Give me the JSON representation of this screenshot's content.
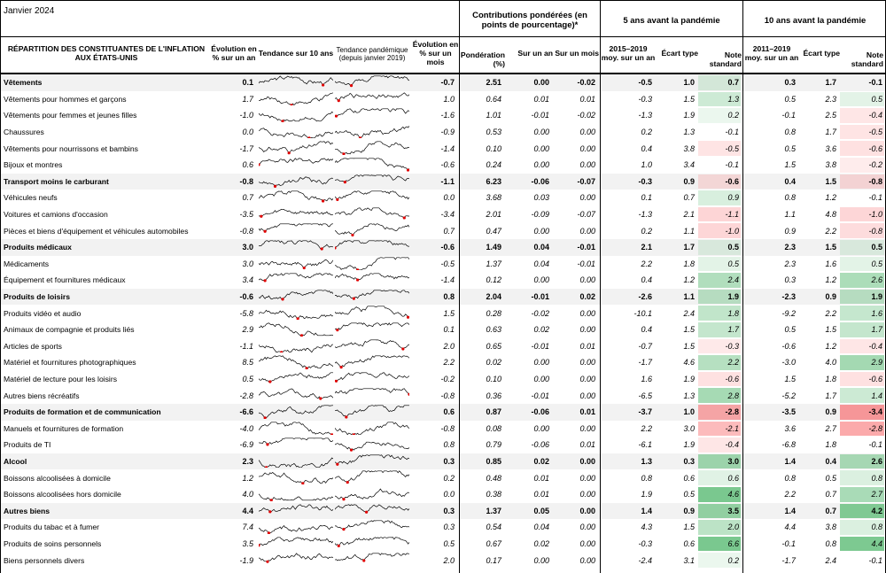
{
  "header": {
    "date": "Janvier 2024",
    "title_line1": "RÉPARTITION DES CONSTITUANTES DE L'INFLATION",
    "title_line2": "AUX ÉTATS-UNIS",
    "col_yoy_1": "Évolution en",
    "col_yoy_2": "% sur un an",
    "col_trend10": "Tendance sur 10 ans",
    "col_trendpan_1": "Tendance pandémique",
    "col_trendpan_2": "(depuis janvier 2019)",
    "col_mom_1": "Évolution en",
    "col_mom_2": "% sur un mois",
    "group_contrib_1": "Contributions pondérées (en",
    "group_contrib_2": "points de pourcentage)*",
    "col_weight_1": "Pondération",
    "col_weight_2": "(%)",
    "col_c_yoy": "Sur un an",
    "col_c_mom": "Sur un mois",
    "group_5y": "5 ans avant la pandémie",
    "group_10y": "10 ans avant la pandémie",
    "col_5y_avg_1": "2015–2019",
    "col_5y_avg_2": "moy. sur un an",
    "col_5y_sd": "Écart type",
    "col_5y_z_1": "Note",
    "col_5y_z_2": "standard",
    "col_10y_avg_1": "2011–2019",
    "col_10y_avg_2": "moy. sur un an",
    "col_10y_sd": "Écart type",
    "col_10y_z_1": "Note",
    "col_10y_z_2": "standard"
  },
  "rows": [
    {
      "name": "Vêtements",
      "cat": true,
      "yoy": "0.1",
      "mom": "-0.7",
      "w": "2.51",
      "cy": "0.00",
      "cm": "-0.02",
      "a5": "-0.5",
      "s5": "1.0",
      "z5": "0.7",
      "a10": "0.3",
      "s10": "1.7",
      "z10": "-0.1"
    },
    {
      "name": "Vêtements pour hommes et garçons",
      "cat": false,
      "yoy": "1.7",
      "mom": "1.0",
      "w": "0.64",
      "cy": "0.01",
      "cm": "0.01",
      "a5": "-0.3",
      "s5": "1.5",
      "z5": "1.3",
      "a10": "0.5",
      "s10": "2.3",
      "z10": "0.5"
    },
    {
      "name": "Vêtements pour femmes et jeunes filles",
      "cat": false,
      "yoy": "-1.0",
      "mom": "-1.6",
      "w": "1.01",
      "cy": "-0.01",
      "cm": "-0.02",
      "a5": "-1.3",
      "s5": "1.9",
      "z5": "0.2",
      "a10": "-0.1",
      "s10": "2.5",
      "z10": "-0.4"
    },
    {
      "name": "Chaussures",
      "cat": false,
      "yoy": "0.0",
      "mom": "-0.9",
      "w": "0.53",
      "cy": "0.00",
      "cm": "0.00",
      "a5": "0.2",
      "s5": "1.3",
      "z5": "-0.1",
      "a10": "0.8",
      "s10": "1.7",
      "z10": "-0.5"
    },
    {
      "name": "Vêtements pour nourrissons et bambins",
      "cat": false,
      "yoy": "-1.7",
      "mom": "-1.4",
      "w": "0.10",
      "cy": "0.00",
      "cm": "0.00",
      "a5": "0.4",
      "s5": "3.8",
      "z5": "-0.5",
      "a10": "0.5",
      "s10": "3.6",
      "z10": "-0.6"
    },
    {
      "name": "Bijoux et montres",
      "cat": false,
      "yoy": "0.6",
      "mom": "-0.6",
      "w": "0.24",
      "cy": "0.00",
      "cm": "0.00",
      "a5": "1.0",
      "s5": "3.4",
      "z5": "-0.1",
      "a10": "1.5",
      "s10": "3.8",
      "z10": "-0.2"
    },
    {
      "name": "Transport moins le carburant",
      "cat": true,
      "yoy": "-0.8",
      "mom": "-1.1",
      "w": "6.23",
      "cy": "-0.06",
      "cm": "-0.07",
      "a5": "-0.3",
      "s5": "0.9",
      "z5": "-0.6",
      "a10": "0.4",
      "s10": "1.5",
      "z10": "-0.8"
    },
    {
      "name": "Véhicules neufs",
      "cat": false,
      "yoy": "0.7",
      "mom": "0.0",
      "w": "3.68",
      "cy": "0.03",
      "cm": "0.00",
      "a5": "0.1",
      "s5": "0.7",
      "z5": "0.9",
      "a10": "0.8",
      "s10": "1.2",
      "z10": "-0.1"
    },
    {
      "name": "Voitures et camions d'occasion",
      "cat": false,
      "yoy": "-3.5",
      "mom": "-3.4",
      "w": "2.01",
      "cy": "-0.09",
      "cm": "-0.07",
      "a5": "-1.3",
      "s5": "2.1",
      "z5": "-1.1",
      "a10": "1.1",
      "s10": "4.8",
      "z10": "-1.0"
    },
    {
      "name": "Pièces et biens d'équipement et véhicules automobiles",
      "cat": false,
      "yoy": "-0.8",
      "mom": "0.7",
      "w": "0.47",
      "cy": "0.00",
      "cm": "0.00",
      "a5": "0.2",
      "s5": "1.1",
      "z5": "-1.0",
      "a10": "0.9",
      "s10": "2.2",
      "z10": "-0.8"
    },
    {
      "name": "Produits médicaux",
      "cat": true,
      "yoy": "3.0",
      "mom": "-0.6",
      "w": "1.49",
      "cy": "0.04",
      "cm": "-0.01",
      "a5": "2.1",
      "s5": "1.7",
      "z5": "0.5",
      "a10": "2.3",
      "s10": "1.5",
      "z10": "0.5"
    },
    {
      "name": "Médicaments",
      "cat": false,
      "yoy": "3.0",
      "mom": "-0.5",
      "w": "1.37",
      "cy": "0.04",
      "cm": "-0.01",
      "a5": "2.2",
      "s5": "1.8",
      "z5": "0.5",
      "a10": "2.3",
      "s10": "1.6",
      "z10": "0.5"
    },
    {
      "name": "Équipement et fournitures médicaux",
      "cat": false,
      "yoy": "3.4",
      "mom": "-1.4",
      "w": "0.12",
      "cy": "0.00",
      "cm": "0.00",
      "a5": "0.4",
      "s5": "1.2",
      "z5": "2.4",
      "a10": "0.3",
      "s10": "1.2",
      "z10": "2.6"
    },
    {
      "name": "Produits de loisirs",
      "cat": true,
      "yoy": "-0.6",
      "mom": "0.8",
      "w": "2.04",
      "cy": "-0.01",
      "cm": "0.02",
      "a5": "-2.6",
      "s5": "1.1",
      "z5": "1.9",
      "a10": "-2.3",
      "s10": "0.9",
      "z10": "1.9"
    },
    {
      "name": "Produits vidéo et audio",
      "cat": false,
      "yoy": "-5.8",
      "mom": "1.5",
      "w": "0.28",
      "cy": "-0.02",
      "cm": "0.00",
      "a5": "-10.1",
      "s5": "2.4",
      "z5": "1.8",
      "a10": "-9.2",
      "s10": "2.2",
      "z10": "1.6"
    },
    {
      "name": "Animaux de compagnie et produits liés",
      "cat": false,
      "yoy": "2.9",
      "mom": "0.1",
      "w": "0.63",
      "cy": "0.02",
      "cm": "0.00",
      "a5": "0.4",
      "s5": "1.5",
      "z5": "1.7",
      "a10": "0.5",
      "s10": "1.5",
      "z10": "1.7"
    },
    {
      "name": "Articles de sports",
      "cat": false,
      "yoy": "-1.1",
      "mom": "2.0",
      "w": "0.65",
      "cy": "-0.01",
      "cm": "0.01",
      "a5": "-0.7",
      "s5": "1.5",
      "z5": "-0.3",
      "a10": "-0.6",
      "s10": "1.2",
      "z10": "-0.4"
    },
    {
      "name": "Matériel et fournitures photographiques",
      "cat": false,
      "yoy": "8.5",
      "mom": "2.2",
      "w": "0.02",
      "cy": "0.00",
      "cm": "0.00",
      "a5": "-1.7",
      "s5": "4.6",
      "z5": "2.2",
      "a10": "-3.0",
      "s10": "4.0",
      "z10": "2.9"
    },
    {
      "name": "Matériel de lecture pour les loisirs",
      "cat": false,
      "yoy": "0.5",
      "mom": "-0.2",
      "w": "0.10",
      "cy": "0.00",
      "cm": "0.00",
      "a5": "1.6",
      "s5": "1.9",
      "z5": "-0.6",
      "a10": "1.5",
      "s10": "1.8",
      "z10": "-0.6"
    },
    {
      "name": "Autres biens récréatifs",
      "cat": false,
      "yoy": "-2.8",
      "mom": "-0.8",
      "w": "0.36",
      "cy": "-0.01",
      "cm": "0.00",
      "a5": "-6.5",
      "s5": "1.3",
      "z5": "2.8",
      "a10": "-5.2",
      "s10": "1.7",
      "z10": "1.4"
    },
    {
      "name": "Produits de formation et de communication",
      "cat": true,
      "yoy": "-6.6",
      "mom": "0.6",
      "w": "0.87",
      "cy": "-0.06",
      "cm": "0.01",
      "a5": "-3.7",
      "s5": "1.0",
      "z5": "-2.8",
      "a10": "-3.5",
      "s10": "0.9",
      "z10": "-3.4"
    },
    {
      "name": "Manuels et fournitures de formation",
      "cat": false,
      "yoy": "-4.0",
      "mom": "-0.8",
      "w": "0.08",
      "cy": "0.00",
      "cm": "0.00",
      "a5": "2.2",
      "s5": "3.0",
      "z5": "-2.1",
      "a10": "3.6",
      "s10": "2.7",
      "z10": "-2.8"
    },
    {
      "name": "Produits de TI",
      "cat": false,
      "yoy": "-6.9",
      "mom": "0.8",
      "w": "0.79",
      "cy": "-0.06",
      "cm": "0.01",
      "a5": "-6.1",
      "s5": "1.9",
      "z5": "-0.4",
      "a10": "-6.8",
      "s10": "1.8",
      "z10": "-0.1"
    },
    {
      "name": "Alcool",
      "cat": true,
      "yoy": "2.3",
      "mom": "0.3",
      "w": "0.85",
      "cy": "0.02",
      "cm": "0.00",
      "a5": "1.3",
      "s5": "0.3",
      "z5": "3.0",
      "a10": "1.4",
      "s10": "0.4",
      "z10": "2.6"
    },
    {
      "name": "Boissons alcoolisées à domicile",
      "cat": false,
      "yoy": "1.2",
      "mom": "0.2",
      "w": "0.48",
      "cy": "0.01",
      "cm": "0.00",
      "a5": "0.8",
      "s5": "0.6",
      "z5": "0.6",
      "a10": "0.8",
      "s10": "0.5",
      "z10": "0.8"
    },
    {
      "name": "Boissons alcoolisées hors domicile",
      "cat": false,
      "yoy": "4.0",
      "mom": "0.0",
      "w": "0.38",
      "cy": "0.01",
      "cm": "0.00",
      "a5": "1.9",
      "s5": "0.5",
      "z5": "4.6",
      "a10": "2.2",
      "s10": "0.7",
      "z10": "2.7"
    },
    {
      "name": "Autres biens",
      "cat": true,
      "yoy": "4.4",
      "mom": "0.3",
      "w": "1.37",
      "cy": "0.05",
      "cm": "0.00",
      "a5": "1.4",
      "s5": "0.9",
      "z5": "3.5",
      "a10": "1.4",
      "s10": "0.7",
      "z10": "4.2"
    },
    {
      "name": "Produits du tabac et à fumer",
      "cat": false,
      "yoy": "7.4",
      "mom": "0.3",
      "w": "0.54",
      "cy": "0.04",
      "cm": "0.00",
      "a5": "4.3",
      "s5": "1.5",
      "z5": "2.0",
      "a10": "4.4",
      "s10": "3.8",
      "z10": "0.8"
    },
    {
      "name": "Produits de soins personnels",
      "cat": false,
      "yoy": "3.5",
      "mom": "0.5",
      "w": "0.67",
      "cy": "0.02",
      "cm": "0.00",
      "a5": "-0.3",
      "s5": "0.6",
      "z5": "6.6",
      "a10": "-0.1",
      "s10": "0.8",
      "z10": "4.4"
    },
    {
      "name": "Biens personnels divers",
      "cat": false,
      "yoy": "-1.9",
      "mom": "2.0",
      "w": "0.17",
      "cy": "0.00",
      "cm": "0.00",
      "a5": "-2.4",
      "s5": "3.1",
      "z5": "0.2",
      "a10": "-1.7",
      "s10": "2.4",
      "z10": "-0.1"
    }
  ],
  "colors": {
    "category_band": "#f2f2f2",
    "positive_score": "#63be7b",
    "negative_score": "#f8696b",
    "sparkline": "#000000",
    "sparkline_marker": "#e00000"
  }
}
